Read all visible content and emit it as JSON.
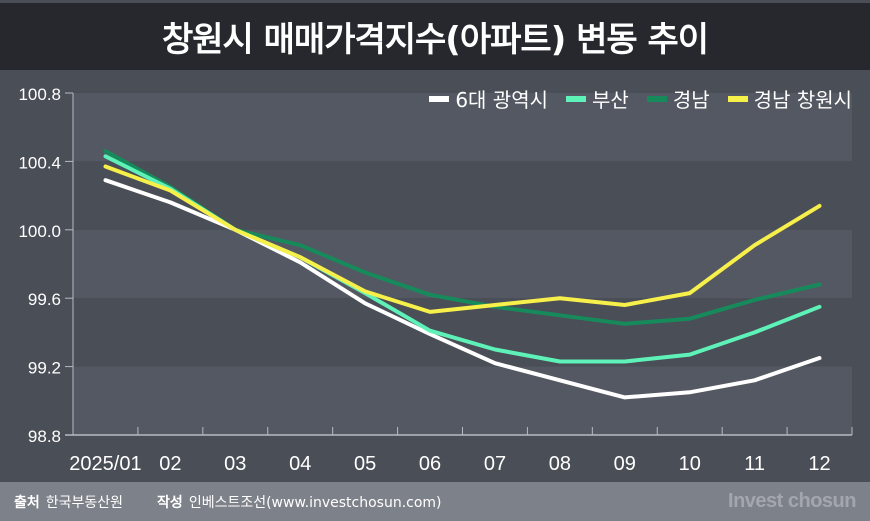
{
  "title": "창원시 매매가격지수(아파트) 변동 추이",
  "chart_data": {
    "type": "line",
    "title": "창원시 매매가격지수(아파트) 변동 추이",
    "categories": [
      "2025/01",
      "02",
      "03",
      "04",
      "05",
      "06",
      "07",
      "08",
      "09",
      "10",
      "11",
      "12"
    ],
    "yticks": [
      "100.8",
      "100.4",
      "100.0",
      "99.6",
      "99.2",
      "98.8"
    ],
    "ylim": [
      98.8,
      100.8
    ],
    "xlabel": "",
    "ylabel": "",
    "legend_position": "top-right",
    "series": [
      {
        "name": "6대 광역시",
        "color": "#ffffff",
        "values": [
          100.29,
          100.16,
          100.0,
          99.81,
          99.57,
          99.39,
          99.22,
          99.12,
          99.02,
          99.05,
          99.12,
          99.25
        ]
      },
      {
        "name": "부산",
        "color": "#5ef2b8",
        "values": [
          100.43,
          100.24,
          100.0,
          99.84,
          99.63,
          99.41,
          99.3,
          99.23,
          99.23,
          99.27,
          99.4,
          99.55
        ]
      },
      {
        "name": "경남",
        "color": "#178a5c",
        "values": [
          100.46,
          100.25,
          100.0,
          99.91,
          99.75,
          99.62,
          99.55,
          99.5,
          99.45,
          99.48,
          99.59,
          99.68
        ]
      },
      {
        "name": "경남 창원시",
        "color": "#f7f04a",
        "values": [
          100.37,
          100.23,
          100.0,
          99.84,
          99.64,
          99.52,
          99.56,
          99.6,
          99.56,
          99.63,
          99.91,
          100.14
        ]
      }
    ]
  },
  "footer": {
    "source_label": "출처",
    "source": "한국부동산원",
    "author_label": "작성",
    "author": "인베스트조선(www.investchosun.com)",
    "brand": "Invest chosun"
  }
}
